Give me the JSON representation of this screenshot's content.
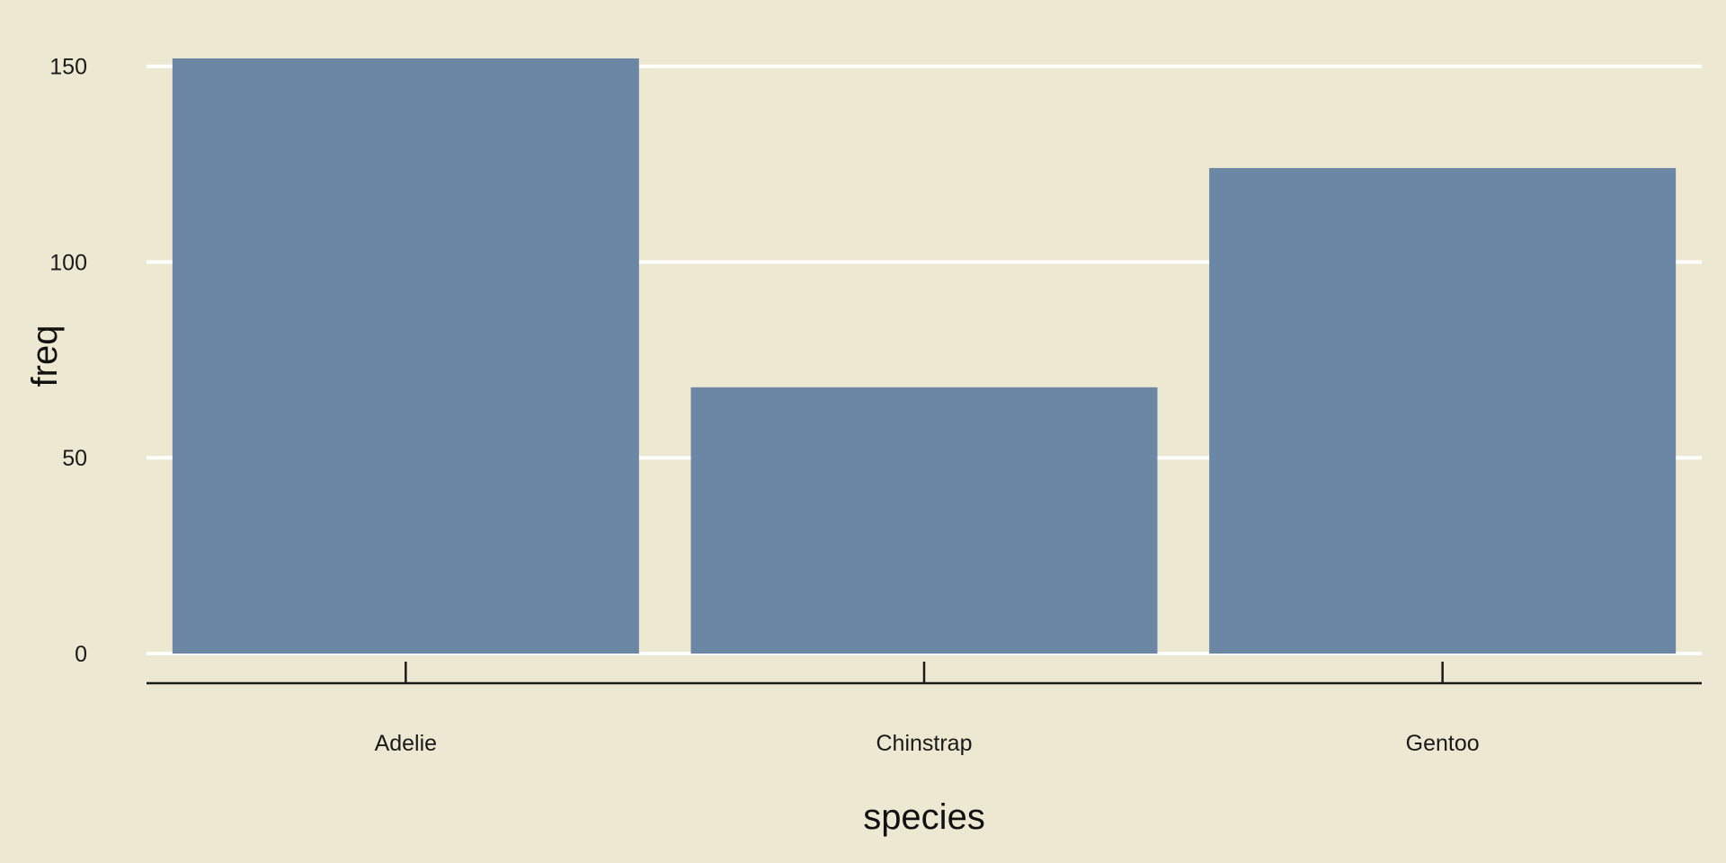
{
  "chart_data": {
    "type": "bar",
    "title": "",
    "xlabel": "species",
    "ylabel": "freq",
    "categories": [
      "Adelie",
      "Chinstrap",
      "Gentoo"
    ],
    "values": [
      152,
      68,
      124
    ],
    "ylim": [
      0,
      152
    ],
    "yticks": [
      0,
      50,
      100,
      150
    ],
    "ytick_labels": [
      "0",
      "50",
      "100",
      "150"
    ],
    "grid": "horizontal",
    "legend": "none",
    "colors": {
      "background": "#ede8d1",
      "bar": "#6c87a6",
      "grid": "#ffffff",
      "axis": "#1a1a1a",
      "text": "#1a1a1a"
    }
  }
}
